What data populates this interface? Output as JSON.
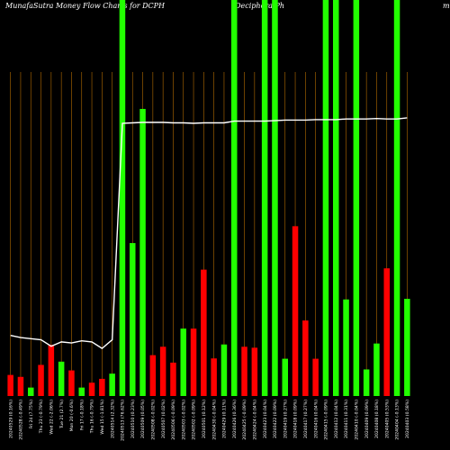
{
  "header": {
    "title": "MunafaSutra  Money Flow  Charts for DCPH",
    "ticker_name": "(Deciphera  Ph",
    "edge_text": "mu"
  },
  "colors": {
    "background": "#000000",
    "up": "#22ff00",
    "down": "#ff0000",
    "gridline": "#b36b00",
    "price_line": "#ffffff"
  },
  "chart_data": {
    "type": "bar",
    "value_scale": [
      0,
      100
    ],
    "price_scale": [
      9.5,
      25.3
    ],
    "bars": [
      {
        "label": "20240529 (0.16%)",
        "value": 6.5,
        "direction": "down",
        "price": 12.3
      },
      {
        "label": "20240528 (-0.49%)",
        "value": 5.9,
        "direction": "down",
        "price": 12.2
      },
      {
        "label": "Fri 24 (7.75%)",
        "value": 2.6,
        "direction": "up",
        "price": 12.15
      },
      {
        "label": "Thu 23 (-0.79%)",
        "value": 9.6,
        "direction": "down",
        "price": 12.1
      },
      {
        "label": "Wed 22 (-2.06%)",
        "value": 15.8,
        "direction": "down",
        "price": 11.8
      },
      {
        "label": "Tue 21 (2.7%)",
        "value": 10.6,
        "direction": "up",
        "price": 12.0
      },
      {
        "label": "Mon 20 (-0.6%)",
        "value": 7.9,
        "direction": "down",
        "price": 11.95
      },
      {
        "label": "Fri 17 (-0.18%)",
        "value": 2.6,
        "direction": "up",
        "price": 12.05
      },
      {
        "label": "Thu 16 (-0.79%)",
        "value": 4.1,
        "direction": "down",
        "price": 12.0
      },
      {
        "label": "Wed 15 (-1.81%)",
        "value": 5.3,
        "direction": "down",
        "price": 11.7
      },
      {
        "label": "20240514 (2.32%)",
        "value": 6.9,
        "direction": "up",
        "price": 12.1
      },
      {
        "label": "20240513 (76.62%)",
        "value": 100.0,
        "direction": "up",
        "price": 22.1
      },
      {
        "label": "20240510 (0.23%)",
        "value": 47.2,
        "direction": "up",
        "price": 22.12
      },
      {
        "label": "20240509 (0.05%)",
        "value": 88.6,
        "direction": "up",
        "price": 22.14
      },
      {
        "label": "20240508 (-0.02%)",
        "value": 12.6,
        "direction": "down",
        "price": 22.14
      },
      {
        "label": "20240507 (0.02%)",
        "value": 15.2,
        "direction": "down",
        "price": 22.14
      },
      {
        "label": "20240506 (-0.09%)",
        "value": 10.3,
        "direction": "down",
        "price": 22.12
      },
      {
        "label": "20240503 (-0.02%)",
        "value": 20.8,
        "direction": "up",
        "price": 22.12
      },
      {
        "label": "20240502 (-0.09%)",
        "value": 20.8,
        "direction": "down",
        "price": 22.1
      },
      {
        "label": "20240501 (0.12%)",
        "value": 39.0,
        "direction": "down",
        "price": 22.12
      },
      {
        "label": "20240430 (-0.04%)",
        "value": 11.6,
        "direction": "down",
        "price": 22.12
      },
      {
        "label": "20240429 (0.11%)",
        "value": 15.9,
        "direction": "up",
        "price": 22.12
      },
      {
        "label": "20240426 (0.36%)",
        "value": 100.0,
        "direction": "up",
        "price": 22.2
      },
      {
        "label": "20240425 (-0.09%)",
        "value": 15.2,
        "direction": "down",
        "price": 22.2
      },
      {
        "label": "20240424 (-0.04%)",
        "value": 14.9,
        "direction": "down",
        "price": 22.2
      },
      {
        "label": "20240423 (0.04%)",
        "value": 100.0,
        "direction": "up",
        "price": 22.2
      },
      {
        "label": "20240422 (0.09%)",
        "value": 100.0,
        "direction": "up",
        "price": 22.22
      },
      {
        "label": "20240419 (0.27%)",
        "value": 11.5,
        "direction": "up",
        "price": 22.25
      },
      {
        "label": "20240418 (0.09%)",
        "value": 52.4,
        "direction": "down",
        "price": 22.25
      },
      {
        "label": "20240417 (0.27%)",
        "value": 23.3,
        "direction": "down",
        "price": 22.25
      },
      {
        "label": "20240416 (0.04%)",
        "value": 11.5,
        "direction": "down",
        "price": 22.27
      },
      {
        "label": "20240415 (-0.09%)",
        "value": 100.0,
        "direction": "up",
        "price": 22.27
      },
      {
        "label": "20240412 (0.04%)",
        "value": 100.0,
        "direction": "up",
        "price": 22.27
      },
      {
        "label": "20240411 (0.31%)",
        "value": 29.8,
        "direction": "up",
        "price": 22.3
      },
      {
        "label": "20240410 (-0.04%)",
        "value": 100.0,
        "direction": "up",
        "price": 22.3
      },
      {
        "label": "20240409 (0.09%)",
        "value": 8.2,
        "direction": "up",
        "price": 22.3
      },
      {
        "label": "20240408 (0.18%)",
        "value": 16.2,
        "direction": "up",
        "price": 22.32
      },
      {
        "label": "20240405 (0.53%)",
        "value": 39.4,
        "direction": "down",
        "price": 22.3
      },
      {
        "label": "20240404 (-0.13%)",
        "value": 100.0,
        "direction": "up",
        "price": 22.3
      },
      {
        "label": "20240403 (0.58%)",
        "value": 30.0,
        "direction": "up",
        "price": 22.35
      }
    ]
  }
}
